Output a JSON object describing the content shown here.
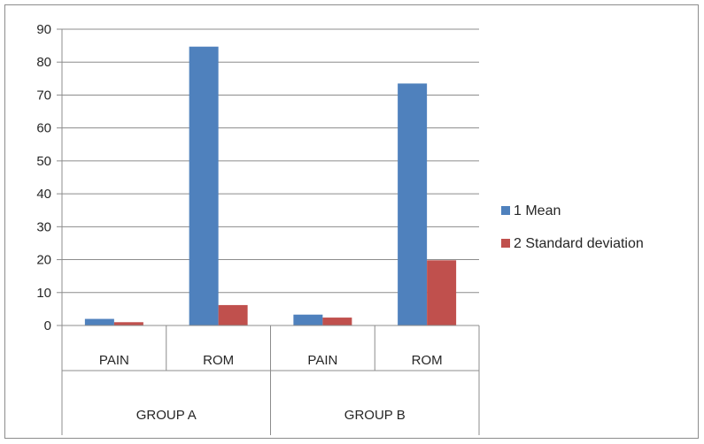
{
  "chart_data": {
    "type": "bar",
    "title": "",
    "xlabel": "",
    "ylabel": "",
    "ylim": [
      0,
      90
    ],
    "yticks": [
      0,
      10,
      20,
      30,
      40,
      50,
      60,
      70,
      80,
      90
    ],
    "grid": true,
    "legend_position": "right",
    "groups": [
      {
        "label": "GROUP A",
        "categories": [
          "PAIN",
          "ROM"
        ]
      },
      {
        "label": "GROUP B",
        "categories": [
          "PAIN",
          "ROM"
        ]
      }
    ],
    "categories": [
      "PAIN",
      "ROM",
      "PAIN",
      "ROM"
    ],
    "series": [
      {
        "name": "1 Mean",
        "color": "#4f81bd",
        "values": [
          2,
          84.7,
          3.3,
          73.5
        ]
      },
      {
        "name": "2 Standard deviation",
        "color": "#c0504d",
        "values": [
          1,
          6.2,
          2.4,
          19.8
        ]
      }
    ]
  }
}
